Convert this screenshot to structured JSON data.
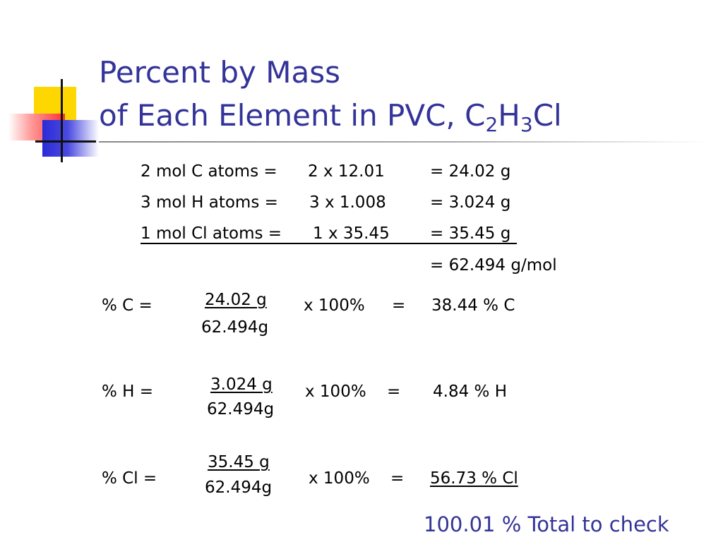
{
  "title": {
    "line1": "Percent by Mass",
    "line2_prefix": "of Each Element in PVC, C",
    "sub1": "2",
    "mid": "H",
    "sub2": "3",
    "suffix": "Cl"
  },
  "molar_mass_rows": [
    {
      "label": "2 mol C atoms =",
      "calc": "2 x 12.01",
      "result": "= 24.02 g"
    },
    {
      "label": "3 mol H atoms =",
      "calc": "3 x 1.008",
      "result": "= 3.024 g"
    },
    {
      "label": "1 mol Cl atoms =",
      "calc": "1 x 35.45",
      "result": "= 35.45 g"
    }
  ],
  "molar_mass_total": "= 62.494 g/mol",
  "percent_rows": [
    {
      "label": "% C =",
      "numerator": "24.02 g",
      "denominator": "62.494g",
      "multiplier": "x 100%",
      "equals": "=",
      "result": "38.44 % C"
    },
    {
      "label": "% H =",
      "numerator": "3.024 g",
      "denominator": "62.494g",
      "multiplier": "x 100%",
      "equals": "=",
      "result": "4.84 % H"
    },
    {
      "label": "% Cl =",
      "numerator": "35.45 g",
      "denominator": "62.494g",
      "multiplier": "x 100%",
      "equals": "=",
      "result": "56.73 % Cl"
    }
  ],
  "check_note": "100.01 % Total  to check",
  "colors": {
    "title": "#333399",
    "text": "#000000"
  }
}
